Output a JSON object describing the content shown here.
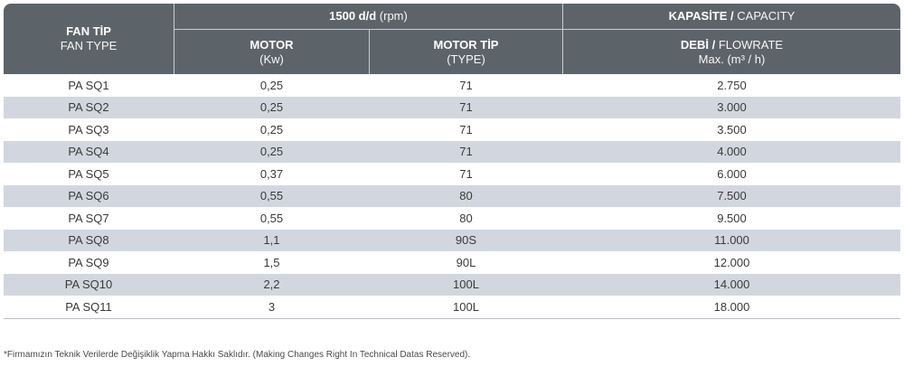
{
  "header": {
    "fan_tip_bold": "FAN TİP",
    "fan_tip_sub": "FAN TYPE",
    "rpm_bold": "1500 d/d",
    "rpm_sub": " (rpm)",
    "capacity_bold": "KAPASİTE /",
    "capacity_sub": " CAPACITY",
    "motor_bold": "MOTOR",
    "motor_sub": "(Kw)",
    "motor_tip_bold": "MOTOR TİP",
    "motor_tip_sub": "(TYPE)",
    "debi_bold": "DEBİ /",
    "debi_sub": " FLOWRATE",
    "max_line": "Max. (m³ / h)"
  },
  "rows": [
    {
      "type": "PA SQ1",
      "motor": "0,25",
      "motor_tip": "71",
      "flow": "2.750"
    },
    {
      "type": "PA SQ2",
      "motor": "0,25",
      "motor_tip": "71",
      "flow": "3.000"
    },
    {
      "type": "PA SQ3",
      "motor": "0,25",
      "motor_tip": "71",
      "flow": "3.500"
    },
    {
      "type": "PA SQ4",
      "motor": "0,25",
      "motor_tip": "71",
      "flow": "4.000"
    },
    {
      "type": "PA SQ5",
      "motor": "0,37",
      "motor_tip": "71",
      "flow": "6.000"
    },
    {
      "type": "PA SQ6",
      "motor": "0,55",
      "motor_tip": "80",
      "flow": "7.500"
    },
    {
      "type": "PA SQ7",
      "motor": "0,55",
      "motor_tip": "80",
      "flow": "9.500"
    },
    {
      "type": "PA SQ8",
      "motor": "1,1",
      "motor_tip": "90S",
      "flow": "11.000"
    },
    {
      "type": "PA SQ9",
      "motor": "1,5",
      "motor_tip": "90L",
      "flow": "12.000"
    },
    {
      "type": "PA SQ10",
      "motor": "2,2",
      "motor_tip": "100L",
      "flow": "14.000"
    },
    {
      "type": "PA SQ11",
      "motor": "3",
      "motor_tip": "100L",
      "flow": "18.000"
    }
  ],
  "footnote": "*Firmamızın Teknik Verilerde Değişiklik Yapma Hakkı Saklıdır. (Making Changes Right In Technical Datas Reserved).",
  "colors": {
    "header_bg": "#5d6469",
    "alt_row": "#d2d7df"
  }
}
